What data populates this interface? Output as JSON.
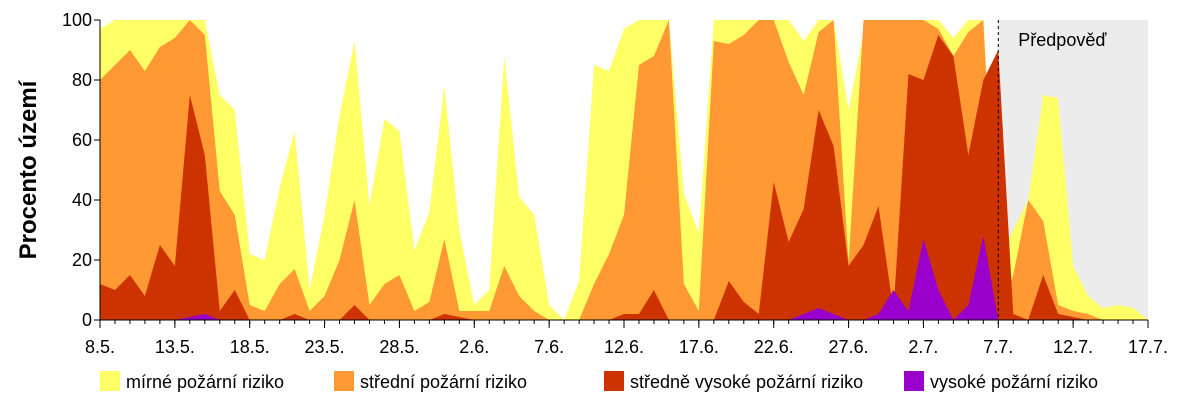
{
  "chart_data": {
    "type": "area",
    "ylabel": "Procento území",
    "ylim": [
      0,
      100
    ],
    "yticks": [
      0,
      20,
      40,
      60,
      80,
      100
    ],
    "xlim": [
      "8.5.",
      "17.7."
    ],
    "xticks": [
      "8.5.",
      "13.5.",
      "18.5.",
      "23.5.",
      "28.5.",
      "2.6.",
      "7.6.",
      "12.6.",
      "17.6.",
      "22.6.",
      "27.6.",
      "2.7.",
      "7.7.",
      "12.7.",
      "17.7."
    ],
    "forecast": {
      "label": "Předpověď",
      "from": "7.7.",
      "to": "17.7.",
      "color": "#ececec"
    },
    "legend_position": "bottom",
    "x": [
      "8.5.",
      "9.5.",
      "10.5.",
      "11.5.",
      "12.5.",
      "13.5.",
      "14.5.",
      "15.5.",
      "16.5.",
      "17.5.",
      "18.5.",
      "19.5.",
      "20.5.",
      "21.5.",
      "22.5.",
      "23.5.",
      "24.5.",
      "25.5.",
      "26.5.",
      "27.5.",
      "28.5.",
      "29.5.",
      "30.5.",
      "31.5.",
      "1.6.",
      "2.6.",
      "3.6.",
      "4.6.",
      "5.6.",
      "6.6.",
      "7.6.",
      "8.6.",
      "9.6.",
      "10.6.",
      "11.6.",
      "12.6.",
      "13.6.",
      "14.6.",
      "15.6.",
      "16.6.",
      "17.6.",
      "18.6.",
      "19.6.",
      "20.6.",
      "21.6.",
      "22.6.",
      "23.6.",
      "24.6.",
      "25.6.",
      "26.6.",
      "27.6.",
      "28.6.",
      "29.6.",
      "30.6.",
      "1.7.",
      "2.7.",
      "3.7.",
      "4.7.",
      "5.7.",
      "6.7.",
      "7.7.",
      "8.7.",
      "9.7.",
      "10.7.",
      "11.7.",
      "12.7.",
      "13.7.",
      "14.7.",
      "15.7.",
      "16.7.",
      "17.7."
    ],
    "series": [
      {
        "name": "mírné požární riziko",
        "color": "#ffff66",
        "values": [
          97,
          100,
          100,
          100,
          100,
          100,
          100,
          100,
          75,
          70,
          22,
          20,
          44,
          63,
          10,
          35,
          68,
          93,
          38,
          67,
          63,
          23,
          36,
          78,
          30,
          5,
          10,
          88,
          41,
          35,
          5,
          0,
          13,
          85,
          83,
          97,
          100,
          100,
          100,
          42,
          29,
          100,
          100,
          100,
          100,
          100,
          100,
          93,
          100,
          100,
          70,
          96,
          100,
          100,
          100,
          100,
          100,
          94,
          100,
          100,
          20,
          30,
          40,
          75,
          74,
          18,
          8,
          4,
          5,
          4,
          0
        ]
      },
      {
        "name": "střední požární riziko",
        "color": "#ff9933",
        "values": [
          80,
          85,
          90,
          83,
          91,
          94,
          100,
          95,
          43,
          35,
          5,
          3,
          12,
          17,
          3,
          8,
          20,
          40,
          5,
          12,
          15,
          3,
          6,
          27,
          3,
          3,
          3,
          18,
          8,
          3,
          0,
          0,
          0,
          12,
          22,
          35,
          85,
          88,
          100,
          12,
          3,
          93,
          92,
          95,
          100,
          100,
          86,
          75,
          96,
          100,
          19,
          100,
          100,
          100,
          100,
          100,
          97,
          88,
          96,
          100,
          2,
          15,
          40,
          33,
          5,
          3,
          2,
          0,
          0,
          0,
          0
        ]
      },
      {
        "name": "středně vysoké požární riziko",
        "color": "#cc3300",
        "values": [
          12,
          10,
          15,
          8,
          25,
          18,
          75,
          55,
          3,
          10,
          0,
          0,
          0,
          2,
          0,
          0,
          0,
          5,
          0,
          0,
          0,
          0,
          0,
          2,
          1,
          0,
          0,
          0,
          0,
          0,
          0,
          0,
          0,
          0,
          0,
          2,
          2,
          10,
          0,
          0,
          0,
          0,
          13,
          6,
          2,
          46,
          26,
          37,
          70,
          58,
          18,
          25,
          38,
          3,
          82,
          80,
          95,
          88,
          55,
          80,
          90,
          2,
          0,
          15,
          2,
          1,
          0,
          0,
          0,
          0,
          0
        ]
      },
      {
        "name": "vysoké požární riziko",
        "color": "#9900cc",
        "values": [
          0,
          0,
          0,
          0,
          0,
          0,
          1,
          2,
          0,
          0,
          0,
          0,
          0,
          0,
          0,
          0,
          0,
          0,
          0,
          0,
          0,
          0,
          0,
          0,
          0,
          0,
          0,
          0,
          0,
          0,
          0,
          0,
          0,
          0,
          0,
          0,
          0,
          0,
          0,
          0,
          0,
          0,
          0,
          0,
          0,
          0,
          0,
          2,
          4,
          2,
          0,
          0,
          2,
          10,
          3,
          27,
          10,
          0,
          5,
          28,
          0,
          0,
          0,
          0,
          0,
          0,
          0,
          0,
          0,
          0,
          0
        ]
      }
    ]
  }
}
